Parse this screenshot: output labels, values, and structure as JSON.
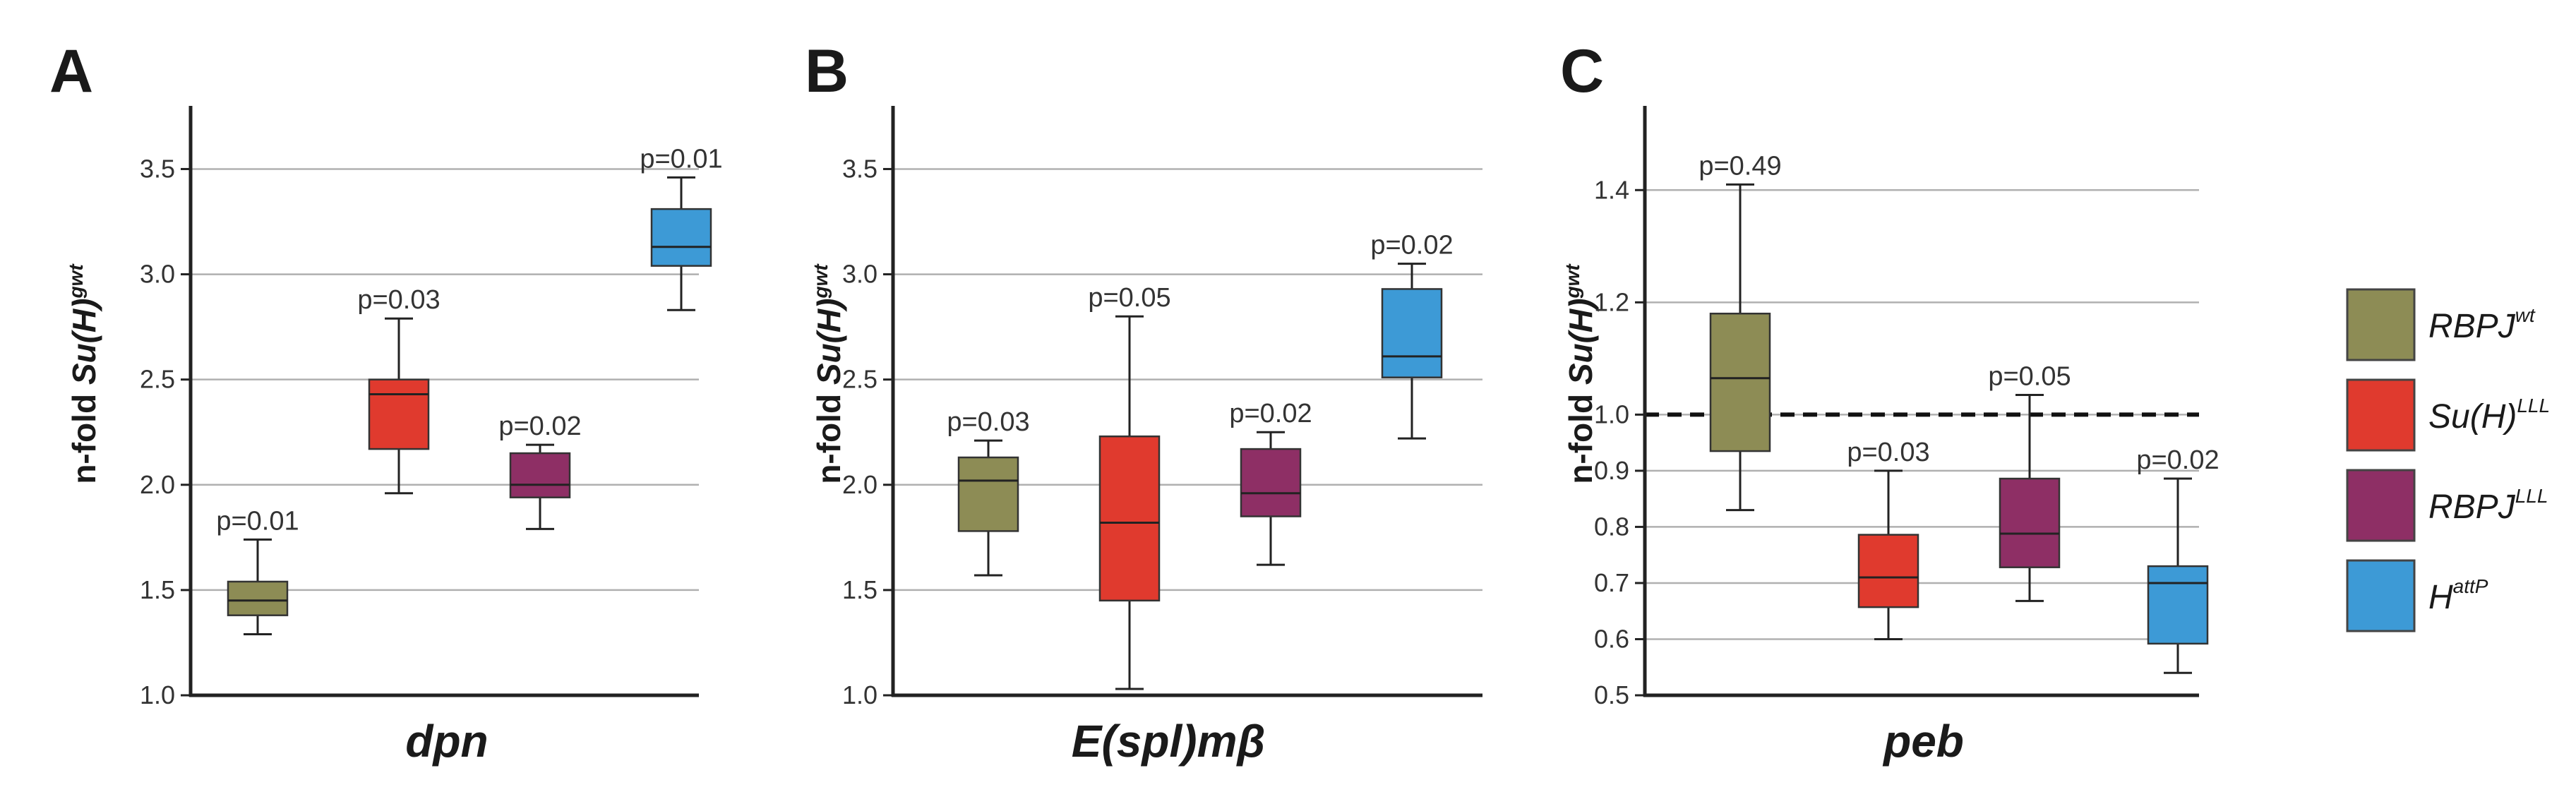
{
  "colors": {
    "RBPJ_wt": "#8d8c55",
    "SuH_LLL": "#e03a2e",
    "RBPJ_LLL": "#8e2f65",
    "H_attP": "#3d9ad6",
    "grid": "#b0b0b0",
    "axis": "#222222"
  },
  "ylabel": {
    "prefix": "n-fold ",
    "italic": "Su(H)",
    "sup": "gwt"
  },
  "legend": {
    "items": [
      {
        "base": "RBPJ",
        "sup": "wt",
        "color_key": "RBPJ_wt"
      },
      {
        "base": "Su(H)",
        "sup": "LLL",
        "color_key": "SuH_LLL"
      },
      {
        "base": "RBPJ",
        "sup": "LLL",
        "color_key": "RBPJ_LLL"
      },
      {
        "base": "H",
        "sup": "attP",
        "color_key": "H_attP"
      }
    ]
  },
  "chart_data": [
    {
      "type": "box",
      "panel": "A",
      "title": "dpn",
      "ylim": [
        1.0,
        3.8
      ],
      "yticks": [
        "1.0",
        "1.5",
        "2.0",
        "2.5",
        "3.0",
        "3.5"
      ],
      "grid": true,
      "reference_line": null,
      "boxes": [
        {
          "series": "RBPJ_wt",
          "min": 1.29,
          "q1": 1.38,
          "median": 1.45,
          "q3": 1.54,
          "max": 1.74,
          "p": "p=0.01"
        },
        {
          "series": "SuH_LLL",
          "min": 1.96,
          "q1": 2.17,
          "median": 2.43,
          "q3": 2.5,
          "max": 2.79,
          "p": "p=0.03"
        },
        {
          "series": "RBPJ_LLL",
          "min": 1.79,
          "q1": 1.94,
          "median": 2.0,
          "q3": 2.15,
          "max": 2.19,
          "p": "p=0.02"
        },
        {
          "series": "H_attP",
          "min": 2.83,
          "q1": 3.04,
          "median": 3.13,
          "q3": 3.31,
          "max": 3.46,
          "p": "p=0.01"
        }
      ]
    },
    {
      "type": "box",
      "panel": "B",
      "title": "E(spl)mβ",
      "ylim": [
        1.0,
        3.8
      ],
      "yticks": [
        "1.0",
        "1.5",
        "2.0",
        "2.5",
        "3.0",
        "3.5"
      ],
      "grid": true,
      "reference_line": null,
      "boxes": [
        {
          "series": "RBPJ_wt",
          "min": 1.57,
          "q1": 1.78,
          "median": 2.02,
          "q3": 2.13,
          "max": 2.21,
          "p": "p=0.03"
        },
        {
          "series": "SuH_LLL",
          "min": 1.03,
          "q1": 1.45,
          "median": 1.82,
          "q3": 2.23,
          "max": 2.8,
          "p": "p=0.05"
        },
        {
          "series": "RBPJ_LLL",
          "min": 1.62,
          "q1": 1.85,
          "median": 1.96,
          "q3": 2.17,
          "max": 2.25,
          "p": "p=0.02"
        },
        {
          "series": "H_attP",
          "min": 2.22,
          "q1": 2.51,
          "median": 2.61,
          "q3": 2.93,
          "max": 3.05,
          "p": "p=0.02"
        }
      ]
    },
    {
      "type": "box",
      "panel": "C",
      "title": "peb",
      "ylim": [
        0.5,
        1.55
      ],
      "yticks": [
        "0.5",
        "0.6",
        "0.7",
        "0.8",
        "0.9",
        "1.0",
        "1.2",
        "1.4"
      ],
      "grid": true,
      "reference_line": 1.0,
      "boxes": [
        {
          "series": "RBPJ_wt",
          "min": 0.83,
          "q1": 0.935,
          "median": 1.065,
          "q3": 1.18,
          "max": 1.41,
          "p": "p=0.49"
        },
        {
          "series": "SuH_LLL",
          "min": 0.6,
          "q1": 0.657,
          "median": 0.71,
          "q3": 0.786,
          "max": 0.9,
          "p": "p=0.03"
        },
        {
          "series": "RBPJ_LLL",
          "min": 0.668,
          "q1": 0.728,
          "median": 0.788,
          "q3": 0.886,
          "max": 1.035,
          "p": "p=0.05"
        },
        {
          "series": "H_attP",
          "min": 0.54,
          "q1": 0.592,
          "median": 0.7,
          "q3": 0.73,
          "max": 0.886,
          "p": "p=0.02"
        }
      ]
    }
  ]
}
